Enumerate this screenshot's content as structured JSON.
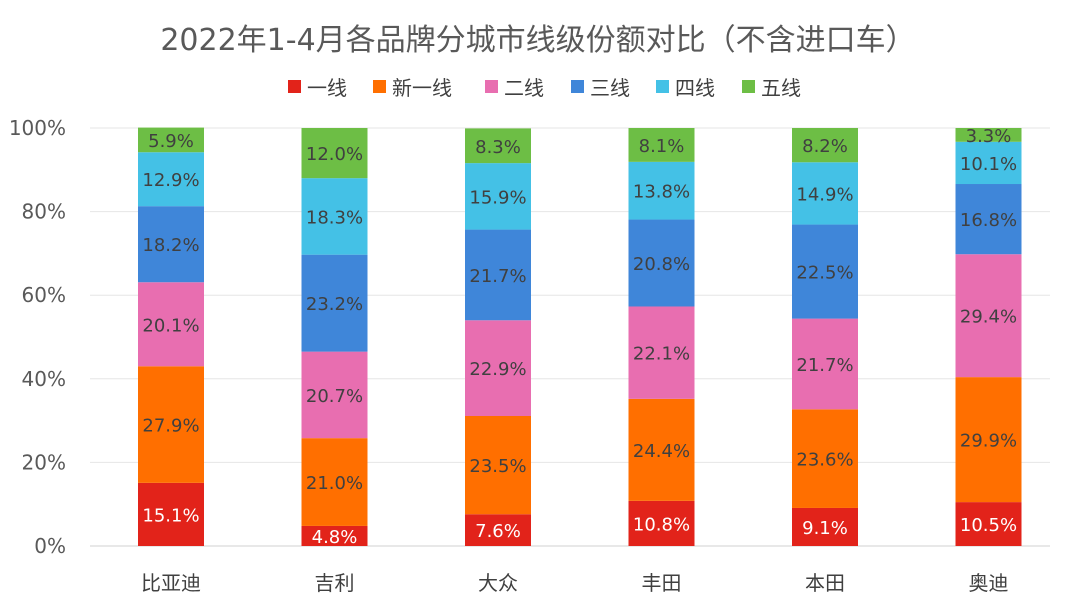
{
  "chart_data": {
    "type": "bar",
    "stacked": true,
    "title": "2022年1-4月各品牌分城市线级份额对比（不含进口车）",
    "categories": [
      "比亚迪",
      "吉利",
      "大众",
      "丰田",
      "本田",
      "奥迪"
    ],
    "series": [
      {
        "name": "一线",
        "color": "#E2231A",
        "values": [
          15.1,
          4.8,
          7.6,
          10.8,
          9.1,
          10.5
        ],
        "labels": [
          "15.1%",
          "4.8%",
          "7.6%",
          "10.8%",
          "9.1%",
          "10.5%"
        ]
      },
      {
        "name": "新一线",
        "color": "#FF6F00",
        "values": [
          27.9,
          21.0,
          23.5,
          24.4,
          23.6,
          29.9
        ],
        "labels": [
          "27.9%",
          "21.0%",
          "23.5%",
          "24.4%",
          "23.6%",
          "29.9%"
        ]
      },
      {
        "name": "二线",
        "color": "#E86EB0",
        "values": [
          20.1,
          20.7,
          22.9,
          22.1,
          21.7,
          29.4
        ],
        "labels": [
          "20.1%",
          "20.7%",
          "22.9%",
          "22.1%",
          "21.7%",
          "29.4%"
        ]
      },
      {
        "name": "三线",
        "color": "#3F86D9",
        "values": [
          18.2,
          23.2,
          21.7,
          20.8,
          22.5,
          16.8
        ],
        "labels": [
          "18.2%",
          "23.2%",
          "21.7%",
          "20.8%",
          "22.5%",
          "16.8%"
        ]
      },
      {
        "name": "四线",
        "color": "#44C1E6",
        "values": [
          12.9,
          18.3,
          15.9,
          13.8,
          14.9,
          10.1
        ],
        "labels": [
          "12.9%",
          "18.3%",
          "15.9%",
          "13.8%",
          "14.9%",
          "10.1%"
        ]
      },
      {
        "name": "五线",
        "color": "#6DBE45",
        "values": [
          5.9,
          12.0,
          8.3,
          8.1,
          8.2,
          3.3
        ],
        "labels": [
          "5.9%",
          "12.0%",
          "8.3%",
          "8.1%",
          "8.2%",
          "3.3%"
        ]
      }
    ],
    "ylim": [
      0,
      100
    ],
    "yticks": [
      0,
      20,
      40,
      60,
      80,
      100
    ],
    "ytick_labels": [
      "0%",
      "20%",
      "40%",
      "60%",
      "80%",
      "100%"
    ],
    "xlabel": "",
    "ylabel": "",
    "grid": true,
    "legend_position": "top",
    "label_color_dark": "#404040",
    "label_color_light": "#ffffff"
  }
}
